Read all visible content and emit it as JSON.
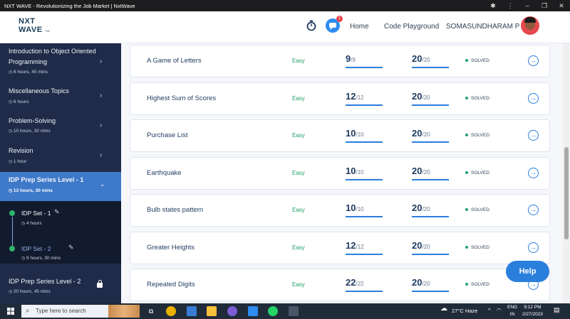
{
  "window": {
    "title": "NXT WAVE - Revolutionizing the Job Market | NxtWave"
  },
  "header": {
    "logo_line1": "NXT",
    "logo_line2": "WAVE",
    "logo_tm": "TM",
    "notif_count": "1",
    "home": "Home",
    "code_playground": "Code Playground",
    "user_name": "SOMASUNDHARAM P"
  },
  "sidebar": {
    "items": [
      {
        "title_line1": "Introduction to Object Oriented",
        "title_line2": "Programming",
        "duration": "6 hours, 45 mins"
      },
      {
        "title": "Miscellaneous Topics",
        "duration": "6 hours"
      },
      {
        "title": "Problem-Solving",
        "duration": "10 hours, 30 mins"
      },
      {
        "title": "Revision",
        "duration": "1 hour"
      },
      {
        "title": "IDP Prep Series Level - 1",
        "duration": "13 hours, 30 mins"
      },
      {
        "title": "IDP Prep Series Level - 2",
        "duration": "20 hours, 45 mins"
      }
    ],
    "sub_items": [
      {
        "title": "IDP Set - 1",
        "duration": "4 hours"
      },
      {
        "title": "IDP Set - 2",
        "duration": "9 hours, 30 mins"
      }
    ]
  },
  "problems": [
    {
      "name": "A Game of Letters",
      "difficulty": "Easy",
      "tests": "9",
      "tests_total": "/9",
      "score": "20",
      "score_total": "/20",
      "status": "SOLVED"
    },
    {
      "name": "Highest Sum of Scores",
      "difficulty": "Easy",
      "tests": "12",
      "tests_total": "/12",
      "score": "20",
      "score_total": "/20",
      "status": "SOLVED"
    },
    {
      "name": "Purchase List",
      "difficulty": "Easy",
      "tests": "10",
      "tests_total": "/10",
      "score": "20",
      "score_total": "/20",
      "status": "SOLVED"
    },
    {
      "name": "Earthquake",
      "difficulty": "Easy",
      "tests": "10",
      "tests_total": "/10",
      "score": "20",
      "score_total": "/20",
      "status": "SOLVED"
    },
    {
      "name": "Bulb states pattern",
      "difficulty": "Easy",
      "tests": "10",
      "tests_total": "/10",
      "score": "20",
      "score_total": "/20",
      "status": "SOLVED"
    },
    {
      "name": "Greater Heights",
      "difficulty": "Easy",
      "tests": "12",
      "tests_total": "/12",
      "score": "20",
      "score_total": "/20",
      "status": "SOLVED"
    },
    {
      "name": "Repeated Digits",
      "difficulty": "Easy",
      "tests": "22",
      "tests_total": "/22",
      "score": "20",
      "score_total": "/20",
      "status": "SOLVED"
    }
  ],
  "help": "Help",
  "taskbar": {
    "search_placeholder": "Type here to search",
    "weather": "27°C  Haze",
    "lang1": "ENG",
    "lang2": "IN",
    "time": "9:12 PM",
    "date": "2/27/2023"
  },
  "colors": {
    "accent": "#2a7fdc",
    "sidebar_bg": "#1f2b48",
    "sidebar_active": "#3f79c9",
    "easy": "#22a06b"
  }
}
